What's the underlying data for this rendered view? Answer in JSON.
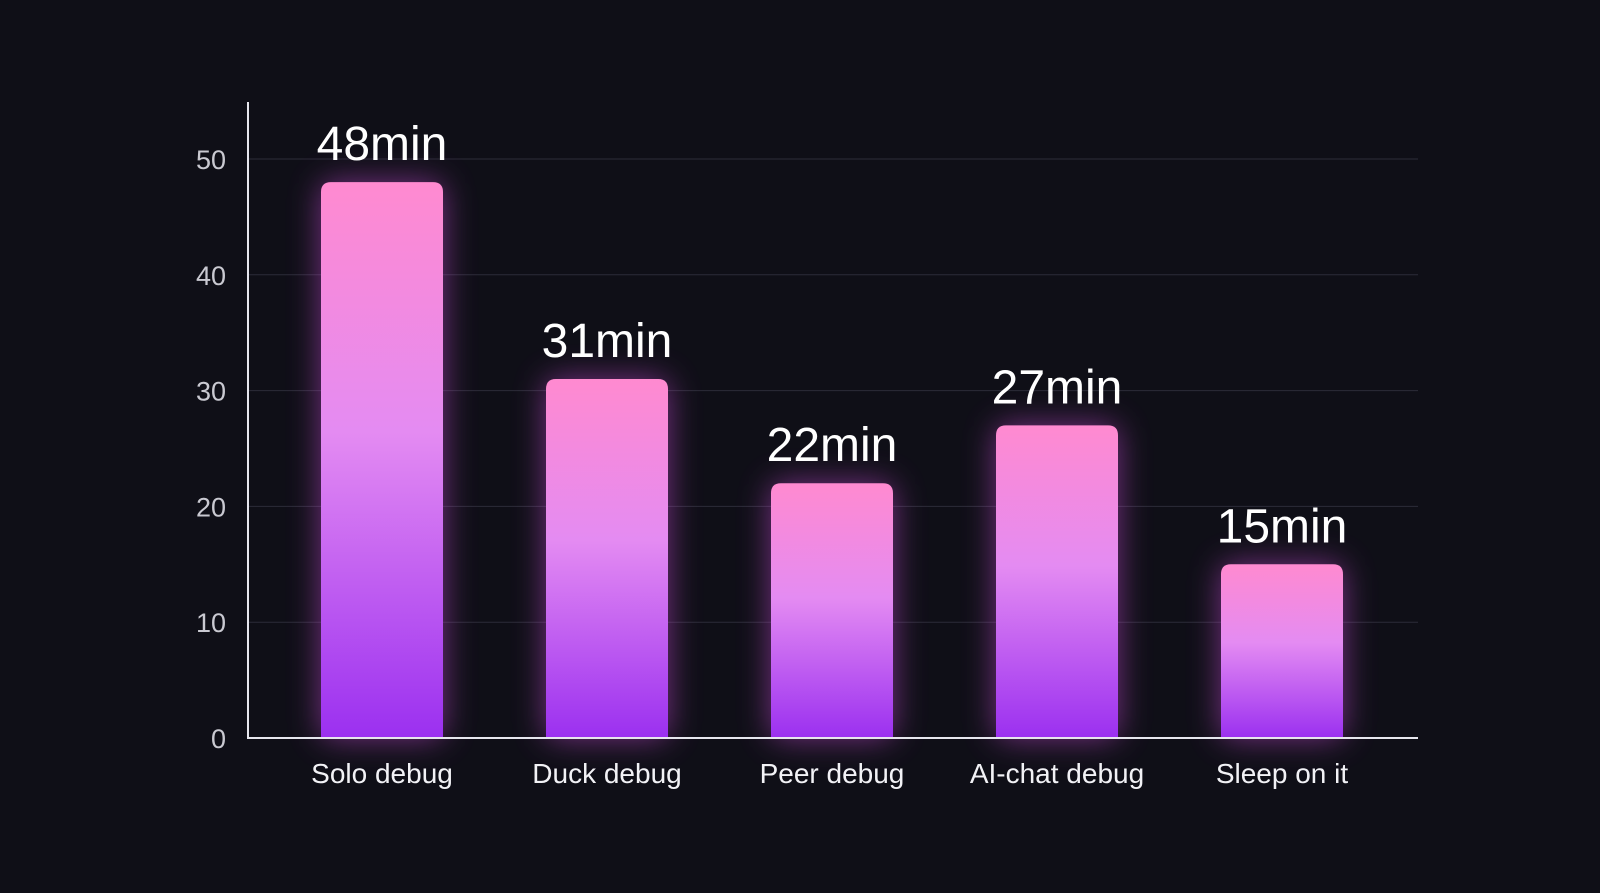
{
  "chart_data": {
    "type": "bar",
    "title": "",
    "xlabel": "",
    "ylabel": "",
    "categories": [
      "Solo debug",
      "Duck debug",
      "Peer debug",
      "AI-chat debug",
      "Sleep on it"
    ],
    "values": [
      48,
      31,
      22,
      27,
      15
    ],
    "value_labels": [
      "48min",
      "31min",
      "22min",
      "27min",
      "15min"
    ],
    "yticks": [
      0,
      10,
      20,
      30,
      40,
      50
    ],
    "ylim": [
      0,
      55
    ],
    "grid": true,
    "legend": "none",
    "colors": {
      "bar_top": "#ff8ad0",
      "bar_mid": "#e48bf2",
      "bar_bottom": "#9b30f0",
      "glow": "#d14fe0",
      "background": "#0f0f17"
    }
  }
}
